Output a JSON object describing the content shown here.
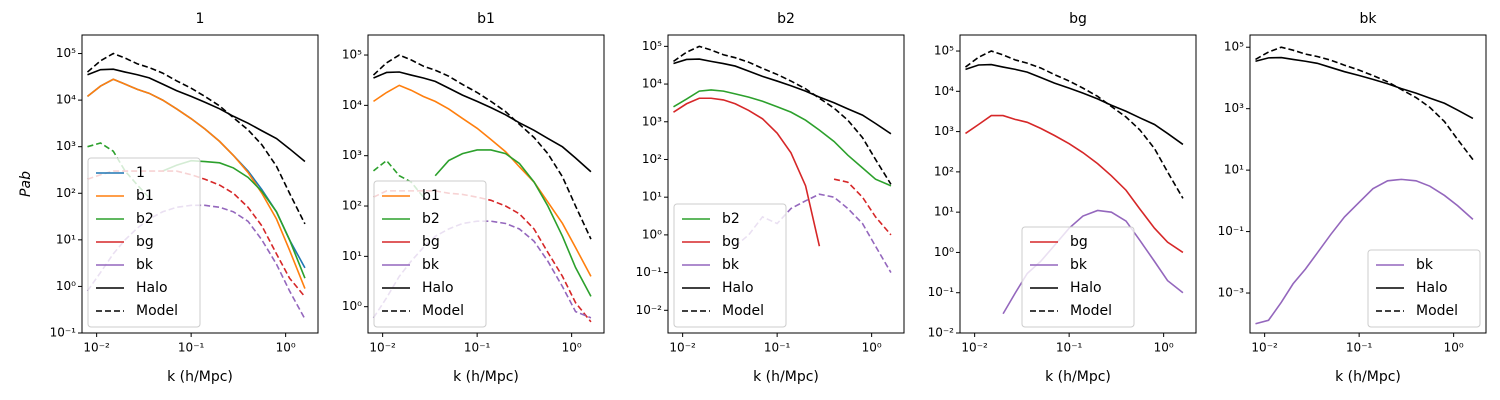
{
  "chart_data": [
    {
      "type": "line",
      "title": "1",
      "xlabel": "k (h/Mpc)",
      "ylabel": "Pab",
      "xscale": "log",
      "yscale": "log",
      "legend_loc": "lower left",
      "x": [
        0.008,
        0.011,
        0.015,
        0.02,
        0.027,
        0.036,
        0.05,
        0.07,
        0.1,
        0.14,
        0.2,
        0.28,
        0.4,
        0.56,
        0.8,
        1.1,
        1.6
      ],
      "xlim": [
        0.007,
        2.2
      ],
      "ylim": [
        0.1,
        250000
      ],
      "xticks": [
        {
          "value": 0.01,
          "label": "10⁻²"
        },
        {
          "value": 0.1,
          "label": "10⁻¹"
        },
        {
          "value": 1,
          "label": "10⁰"
        }
      ],
      "yticks": [
        {
          "value": 0.1,
          "label": "10⁻¹"
        },
        {
          "value": 1,
          "label": "10⁰"
        },
        {
          "value": 10,
          "label": "10¹"
        },
        {
          "value": 100,
          "label": "10²"
        },
        {
          "value": 1000,
          "label": "10³"
        },
        {
          "value": 10000,
          "label": "10⁴"
        },
        {
          "value": 100000,
          "label": "10⁵"
        }
      ],
      "series": [
        {
          "name": "1",
          "color": "#1f77b4",
          "linestyle": "solid",
          "values": [
            12000,
            20000,
            28000,
            22000,
            17000,
            14000,
            10000,
            6500,
            4000,
            2400,
            1300,
            650,
            300,
            120,
            40,
            10,
            2.5
          ]
        },
        {
          "name": "b1",
          "color": "#ff7f0e",
          "linestyle": "solid",
          "values": [
            12000,
            20000,
            28000,
            22000,
            17000,
            14000,
            10000,
            6500,
            4000,
            2400,
            1300,
            650,
            280,
            100,
            28,
            6,
            0.9
          ]
        },
        {
          "name": "b2",
          "color": "#2ca02c",
          "linestyle": "solid",
          "values": [
            null,
            null,
            null,
            null,
            null,
            null,
            300,
            400,
            500,
            480,
            450,
            350,
            220,
            110,
            40,
            10,
            1.5
          ],
          "neg_values": [
            1000,
            1200,
            800,
            300,
            150,
            80,
            null,
            null,
            null,
            null,
            null,
            null,
            null,
            null,
            null,
            null,
            null
          ]
        },
        {
          "name": "bg",
          "color": "#d62728",
          "linestyle": "solid",
          "neg_values": [
            200,
            250,
            300,
            300,
            300,
            300,
            300,
            300,
            250,
            200,
            150,
            100,
            50,
            20,
            5,
            1.5,
            0.6
          ]
        },
        {
          "name": "bk",
          "color": "#9467bd",
          "linestyle": "solid",
          "neg_values": [
            0.8,
            2,
            5,
            10,
            18,
            28,
            40,
            50,
            55,
            55,
            50,
            40,
            25,
            10,
            3,
            0.8,
            0.2
          ]
        },
        {
          "name": "Halo",
          "color": "#000000",
          "linestyle": "solid",
          "values": [
            35000,
            45000,
            46000,
            40000,
            35000,
            30000,
            22000,
            16000,
            12000,
            9000,
            6500,
            4500,
            3200,
            2200,
            1500,
            900,
            480
          ]
        },
        {
          "name": "Model",
          "color": "#000000",
          "linestyle": "dashed",
          "values": [
            40000,
            70000,
            100000,
            80000,
            60000,
            50000,
            38000,
            26000,
            18000,
            12000,
            7500,
            4200,
            2300,
            1100,
            380,
            100,
            22
          ]
        }
      ]
    },
    {
      "type": "line",
      "title": "b1",
      "xlabel": "k (h/Mpc)",
      "xscale": "log",
      "yscale": "log",
      "legend_loc": "lower left",
      "x": [
        0.008,
        0.011,
        0.015,
        0.02,
        0.027,
        0.036,
        0.05,
        0.07,
        0.1,
        0.14,
        0.2,
        0.28,
        0.4,
        0.56,
        0.8,
        1.1,
        1.6
      ],
      "xlim": [
        0.007,
        2.2
      ],
      "ylim": [
        0.3,
        250000
      ],
      "xticks": [
        {
          "value": 0.01,
          "label": "10⁻²"
        },
        {
          "value": 0.1,
          "label": "10⁻¹"
        },
        {
          "value": 1,
          "label": "10⁰"
        }
      ],
      "yticks": [
        {
          "value": 1,
          "label": "10⁰"
        },
        {
          "value": 10,
          "label": "10¹"
        },
        {
          "value": 100,
          "label": "10²"
        },
        {
          "value": 1000,
          "label": "10³"
        },
        {
          "value": 10000,
          "label": "10⁴"
        },
        {
          "value": 100000,
          "label": "10⁵"
        }
      ],
      "series": [
        {
          "name": "b1",
          "color": "#ff7f0e",
          "linestyle": "solid",
          "values": [
            12000,
            18000,
            25000,
            20000,
            15000,
            12000,
            8500,
            5500,
            3500,
            2100,
            1200,
            600,
            300,
            120,
            45,
            15,
            4
          ]
        },
        {
          "name": "b2",
          "color": "#2ca02c",
          "linestyle": "solid",
          "values": [
            null,
            null,
            null,
            null,
            null,
            400,
            800,
            1100,
            1300,
            1300,
            1100,
            700,
            300,
            100,
            25,
            6,
            1.6
          ],
          "neg_values": [
            500,
            800,
            400,
            300,
            150,
            null,
            null,
            null,
            null,
            null,
            null,
            null,
            null,
            null,
            null,
            null,
            null
          ]
        },
        {
          "name": "bg",
          "color": "#d62728",
          "linestyle": "solid",
          "neg_values": [
            150,
            200,
            200,
            200,
            200,
            200,
            180,
            170,
            150,
            130,
            100,
            70,
            35,
            12,
            4,
            1.2,
            0.5
          ]
        },
        {
          "name": "bk",
          "color": "#9467bd",
          "linestyle": "solid",
          "neg_values": [
            0.6,
            1.5,
            4,
            8,
            15,
            25,
            35,
            45,
            50,
            50,
            45,
            35,
            20,
            8,
            2.5,
            0.8,
            0.6
          ]
        },
        {
          "name": "Halo",
          "color": "#000000",
          "linestyle": "solid",
          "values": [
            35000,
            45000,
            46000,
            40000,
            35000,
            30000,
            22000,
            16000,
            12000,
            9000,
            6500,
            4500,
            3200,
            2200,
            1500,
            900,
            480
          ]
        },
        {
          "name": "Model",
          "color": "#000000",
          "linestyle": "dashed",
          "values": [
            40000,
            70000,
            100000,
            80000,
            60000,
            50000,
            38000,
            26000,
            18000,
            12000,
            7500,
            4200,
            2300,
            1100,
            380,
            100,
            22
          ]
        }
      ]
    },
    {
      "type": "line",
      "title": "b2",
      "xlabel": "k (h/Mpc)",
      "xscale": "log",
      "yscale": "log",
      "legend_loc": "lower left",
      "x": [
        0.008,
        0.011,
        0.015,
        0.02,
        0.027,
        0.036,
        0.05,
        0.07,
        0.1,
        0.14,
        0.2,
        0.28,
        0.4,
        0.56,
        0.8,
        1.1,
        1.6
      ],
      "xlim": [
        0.007,
        2.2
      ],
      "ylim": [
        0.0025,
        200000
      ],
      "xticks": [
        {
          "value": 0.01,
          "label": "10⁻²"
        },
        {
          "value": 0.1,
          "label": "10⁻¹"
        },
        {
          "value": 1,
          "label": "10⁰"
        }
      ],
      "yticks": [
        {
          "value": 0.01,
          "label": "10⁻²"
        },
        {
          "value": 0.1,
          "label": "10⁻¹"
        },
        {
          "value": 1,
          "label": "10⁰"
        },
        {
          "value": 10,
          "label": "10¹"
        },
        {
          "value": 100,
          "label": "10²"
        },
        {
          "value": 1000,
          "label": "10³"
        },
        {
          "value": 10000,
          "label": "10⁴"
        },
        {
          "value": 100000,
          "label": "10⁵"
        }
      ],
      "series": [
        {
          "name": "b2",
          "color": "#2ca02c",
          "linestyle": "solid",
          "values": [
            2500,
            4000,
            6500,
            7000,
            6500,
            5500,
            4500,
            3500,
            2500,
            1800,
            1100,
            600,
            300,
            130,
            60,
            30,
            20
          ]
        },
        {
          "name": "bg",
          "color": "#d62728",
          "linestyle": "solid",
          "values": [
            1800,
            3000,
            4200,
            4200,
            3800,
            3000,
            2000,
            1200,
            500,
            150,
            20,
            0.5,
            null,
            null,
            null,
            null,
            null
          ],
          "neg_values": [
            null,
            null,
            null,
            null,
            null,
            null,
            null,
            null,
            null,
            null,
            null,
            null,
            30,
            25,
            10,
            3,
            1
          ]
        },
        {
          "name": "bk",
          "color": "#9467bd",
          "linestyle": "solid",
          "neg_values": [
            null,
            null,
            null,
            null,
            null,
            0.5,
            1,
            3,
            2,
            5,
            8,
            12,
            10,
            5,
            2,
            0.5,
            0.1
          ]
        },
        {
          "name": "Halo",
          "color": "#000000",
          "linestyle": "solid",
          "values": [
            35000,
            45000,
            46000,
            40000,
            35000,
            30000,
            22000,
            16000,
            12000,
            9000,
            6500,
            4500,
            3200,
            2200,
            1500,
            900,
            480
          ]
        },
        {
          "name": "Model",
          "color": "#000000",
          "linestyle": "dashed",
          "values": [
            40000,
            70000,
            100000,
            80000,
            60000,
            50000,
            38000,
            26000,
            18000,
            12000,
            7500,
            4200,
            2300,
            1100,
            380,
            100,
            22
          ]
        }
      ]
    },
    {
      "type": "line",
      "title": "bg",
      "xlabel": "k (h/Mpc)",
      "xscale": "log",
      "yscale": "log",
      "legend_loc": "lower center",
      "x": [
        0.008,
        0.011,
        0.015,
        0.02,
        0.027,
        0.036,
        0.05,
        0.07,
        0.1,
        0.14,
        0.2,
        0.28,
        0.4,
        0.56,
        0.8,
        1.1,
        1.6
      ],
      "xlim": [
        0.007,
        2.2
      ],
      "ylim": [
        0.01,
        250000
      ],
      "xticks": [
        {
          "value": 0.01,
          "label": "10⁻²"
        },
        {
          "value": 0.1,
          "label": "10⁻¹"
        },
        {
          "value": 1,
          "label": "10⁰"
        }
      ],
      "yticks": [
        {
          "value": 0.01,
          "label": "10⁻²"
        },
        {
          "value": 0.1,
          "label": "10⁻¹"
        },
        {
          "value": 1,
          "label": "10⁰"
        },
        {
          "value": 10,
          "label": "10¹"
        },
        {
          "value": 100,
          "label": "10²"
        },
        {
          "value": 1000,
          "label": "10³"
        },
        {
          "value": 10000,
          "label": "10⁴"
        },
        {
          "value": 100000,
          "label": "10⁵"
        }
      ],
      "series": [
        {
          "name": "bg",
          "color": "#d62728",
          "linestyle": "solid",
          "values": [
            900,
            1500,
            2500,
            2500,
            2000,
            1700,
            1200,
            800,
            500,
            300,
            160,
            80,
            35,
            12,
            4,
            1.8,
            1
          ]
        },
        {
          "name": "bk",
          "color": "#9467bd",
          "linestyle": "solid",
          "values": [
            0.08,
            null,
            null,
            0.03,
            0.1,
            0.3,
            0.6,
            1.5,
            4,
            8,
            11,
            10,
            6,
            2,
            0.6,
            0.2,
            0.1
          ]
        },
        {
          "name": "Halo",
          "color": "#000000",
          "linestyle": "solid",
          "values": [
            35000,
            45000,
            46000,
            40000,
            35000,
            30000,
            22000,
            16000,
            12000,
            9000,
            6500,
            4500,
            3200,
            2200,
            1500,
            900,
            480
          ]
        },
        {
          "name": "Model",
          "color": "#000000",
          "linestyle": "dashed",
          "values": [
            40000,
            70000,
            100000,
            80000,
            60000,
            50000,
            38000,
            26000,
            18000,
            12000,
            7500,
            4200,
            2300,
            1100,
            380,
            100,
            22
          ]
        }
      ]
    },
    {
      "type": "line",
      "title": "bk",
      "xlabel": "k (h/Mpc)",
      "xscale": "log",
      "yscale": "log",
      "legend_loc": "lower right",
      "x": [
        0.008,
        0.011,
        0.015,
        0.02,
        0.027,
        0.036,
        0.05,
        0.07,
        0.1,
        0.14,
        0.2,
        0.28,
        0.4,
        0.56,
        0.8,
        1.1,
        1.6
      ],
      "xlim": [
        0.007,
        2.2
      ],
      "ylim": [
        5e-05,
        250000
      ],
      "xticks": [
        {
          "value": 0.01,
          "label": "10⁻²"
        },
        {
          "value": 0.1,
          "label": "10⁻¹"
        },
        {
          "value": 1,
          "label": "10⁰"
        }
      ],
      "yticks": [
        {
          "value": 0.001,
          "label": "10⁻³"
        },
        {
          "value": 0.1,
          "label": "10⁻¹"
        },
        {
          "value": 10,
          "label": "10¹"
        },
        {
          "value": 1000,
          "label": "10³"
        },
        {
          "value": 100000,
          "label": "10⁵"
        }
      ],
      "series": [
        {
          "name": "bk",
          "color": "#9467bd",
          "linestyle": "solid",
          "values": [
            0.0001,
            0.00013,
            0.0005,
            0.002,
            0.006,
            0.02,
            0.08,
            0.3,
            0.9,
            2.5,
            4.5,
            5,
            4.5,
            3,
            1.5,
            0.7,
            0.25
          ]
        },
        {
          "name": "Halo",
          "color": "#000000",
          "linestyle": "solid",
          "values": [
            35000,
            45000,
            46000,
            40000,
            35000,
            30000,
            22000,
            16000,
            12000,
            9000,
            6500,
            4500,
            3200,
            2200,
            1500,
            900,
            480
          ]
        },
        {
          "name": "Model",
          "color": "#000000",
          "linestyle": "dashed",
          "values": [
            40000,
            70000,
            100000,
            80000,
            60000,
            50000,
            38000,
            26000,
            18000,
            12000,
            7500,
            4200,
            2300,
            1100,
            380,
            100,
            22
          ]
        }
      ]
    }
  ]
}
